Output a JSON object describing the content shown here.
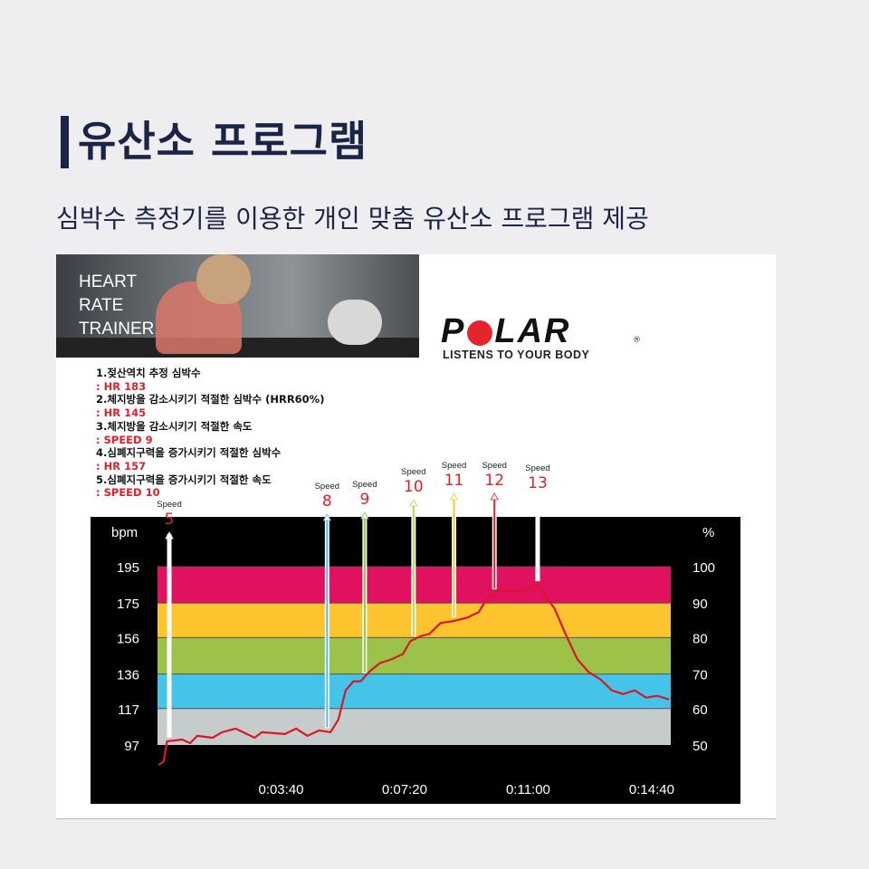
{
  "header": {
    "title": "유산소 프로그램",
    "subtitle": "심박수 측정기를 이용한 개인 맞춤 유산소 프로그램 제공"
  },
  "banner": {
    "text": "HEART\nRATE\nTRAINER"
  },
  "logo": {
    "brand": "POLAR",
    "tagline": "LISTENS TO YOUR BODY",
    "accent": "#e4262c"
  },
  "notes": [
    {
      "label": "1.젖산역치 추정 심박수",
      "value": ":  HR 183"
    },
    {
      "label": "2.체지방을 감소시키기 적절한 심박수 (HRR60%)",
      "value": ":  HR 145"
    },
    {
      "label": "3.체지방을 감소시키기 적절한 속도",
      "value": ": SPEED 9"
    },
    {
      "label": "4.심폐지구력을 증가시키기 적절한 심박수",
      "value": ": HR 157"
    },
    {
      "label": "5.심폐지구력을 증가시키기 적절한 속도",
      "value": ": SPEED 10"
    }
  ],
  "chart_data": {
    "type": "line",
    "ylabel": "bpm",
    "y2label": "%",
    "yticks": [
      97,
      117,
      136,
      156,
      175,
      195
    ],
    "y2ticks": [
      50,
      60,
      70,
      80,
      90,
      100
    ],
    "ylim": [
      97,
      195
    ],
    "xlim_seconds": [
      0,
      914
    ],
    "xticks": [
      {
        "t": 220,
        "label": "0:03:40"
      },
      {
        "t": 440,
        "label": "0:07:20"
      },
      {
        "t": 660,
        "label": "0:11:00"
      },
      {
        "t": 880,
        "label": "0:14:40"
      }
    ],
    "grid": false,
    "zones": [
      {
        "from": 97,
        "to": 117,
        "color": "#c6cccb"
      },
      {
        "from": 117,
        "to": 136,
        "color": "#45c3e8"
      },
      {
        "from": 136,
        "to": 156,
        "color": "#9cc24a"
      },
      {
        "from": 156,
        "to": 175,
        "color": "#fdc42f"
      },
      {
        "from": 175,
        "to": 195,
        "color": "#e0115f"
      }
    ],
    "series": [
      {
        "color": "#d8182a",
        "points": [
          [
            2,
            86
          ],
          [
            11,
            88
          ],
          [
            17,
            99
          ],
          [
            44,
            100
          ],
          [
            58,
            98
          ],
          [
            71,
            102
          ],
          [
            98,
            101
          ],
          [
            115,
            104
          ],
          [
            139,
            106
          ],
          [
            173,
            101
          ],
          [
            186,
            104
          ],
          [
            227,
            103
          ],
          [
            247,
            106
          ],
          [
            267,
            102
          ],
          [
            288,
            105
          ],
          [
            308,
            104
          ],
          [
            322,
            111
          ],
          [
            335,
            127
          ],
          [
            349,
            132
          ],
          [
            362,
            132
          ],
          [
            376,
            137
          ],
          [
            396,
            142
          ],
          [
            416,
            144
          ],
          [
            437,
            147
          ],
          [
            450,
            154
          ],
          [
            470,
            157
          ],
          [
            484,
            158
          ],
          [
            504,
            164
          ],
          [
            525,
            165
          ],
          [
            552,
            167
          ],
          [
            572,
            170
          ],
          [
            586,
            177
          ],
          [
            606,
            182
          ],
          [
            626,
            182
          ],
          [
            647,
            181
          ],
          [
            660,
            183
          ],
          [
            677,
            185
          ],
          [
            691,
            179
          ],
          [
            707,
            172
          ],
          [
            728,
            157
          ],
          [
            748,
            144
          ],
          [
            768,
            137
          ],
          [
            789,
            133
          ],
          [
            809,
            127
          ],
          [
            829,
            125
          ],
          [
            850,
            127
          ],
          [
            870,
            123
          ],
          [
            890,
            124
          ],
          [
            911,
            122
          ]
        ]
      }
    ],
    "annotations": [
      {
        "t": 21,
        "label": "Speed",
        "value": "5",
        "color": "#ffffff"
      },
      {
        "t": 302,
        "label": "Speed",
        "value": "8",
        "color": "#5ab8e6"
      },
      {
        "t": 369,
        "label": "Speed",
        "value": "9",
        "color": "#8fc54a"
      },
      {
        "t": 456,
        "label": "Speed",
        "value": "10",
        "color": "#b9d65a"
      },
      {
        "t": 528,
        "label": "Speed",
        "value": "11",
        "color": "#f2c637"
      },
      {
        "t": 600,
        "label": "Speed",
        "value": "12",
        "color": "#e0202a"
      },
      {
        "t": 677,
        "label": "Speed",
        "value": "13",
        "color": "#ffffff"
      }
    ]
  }
}
